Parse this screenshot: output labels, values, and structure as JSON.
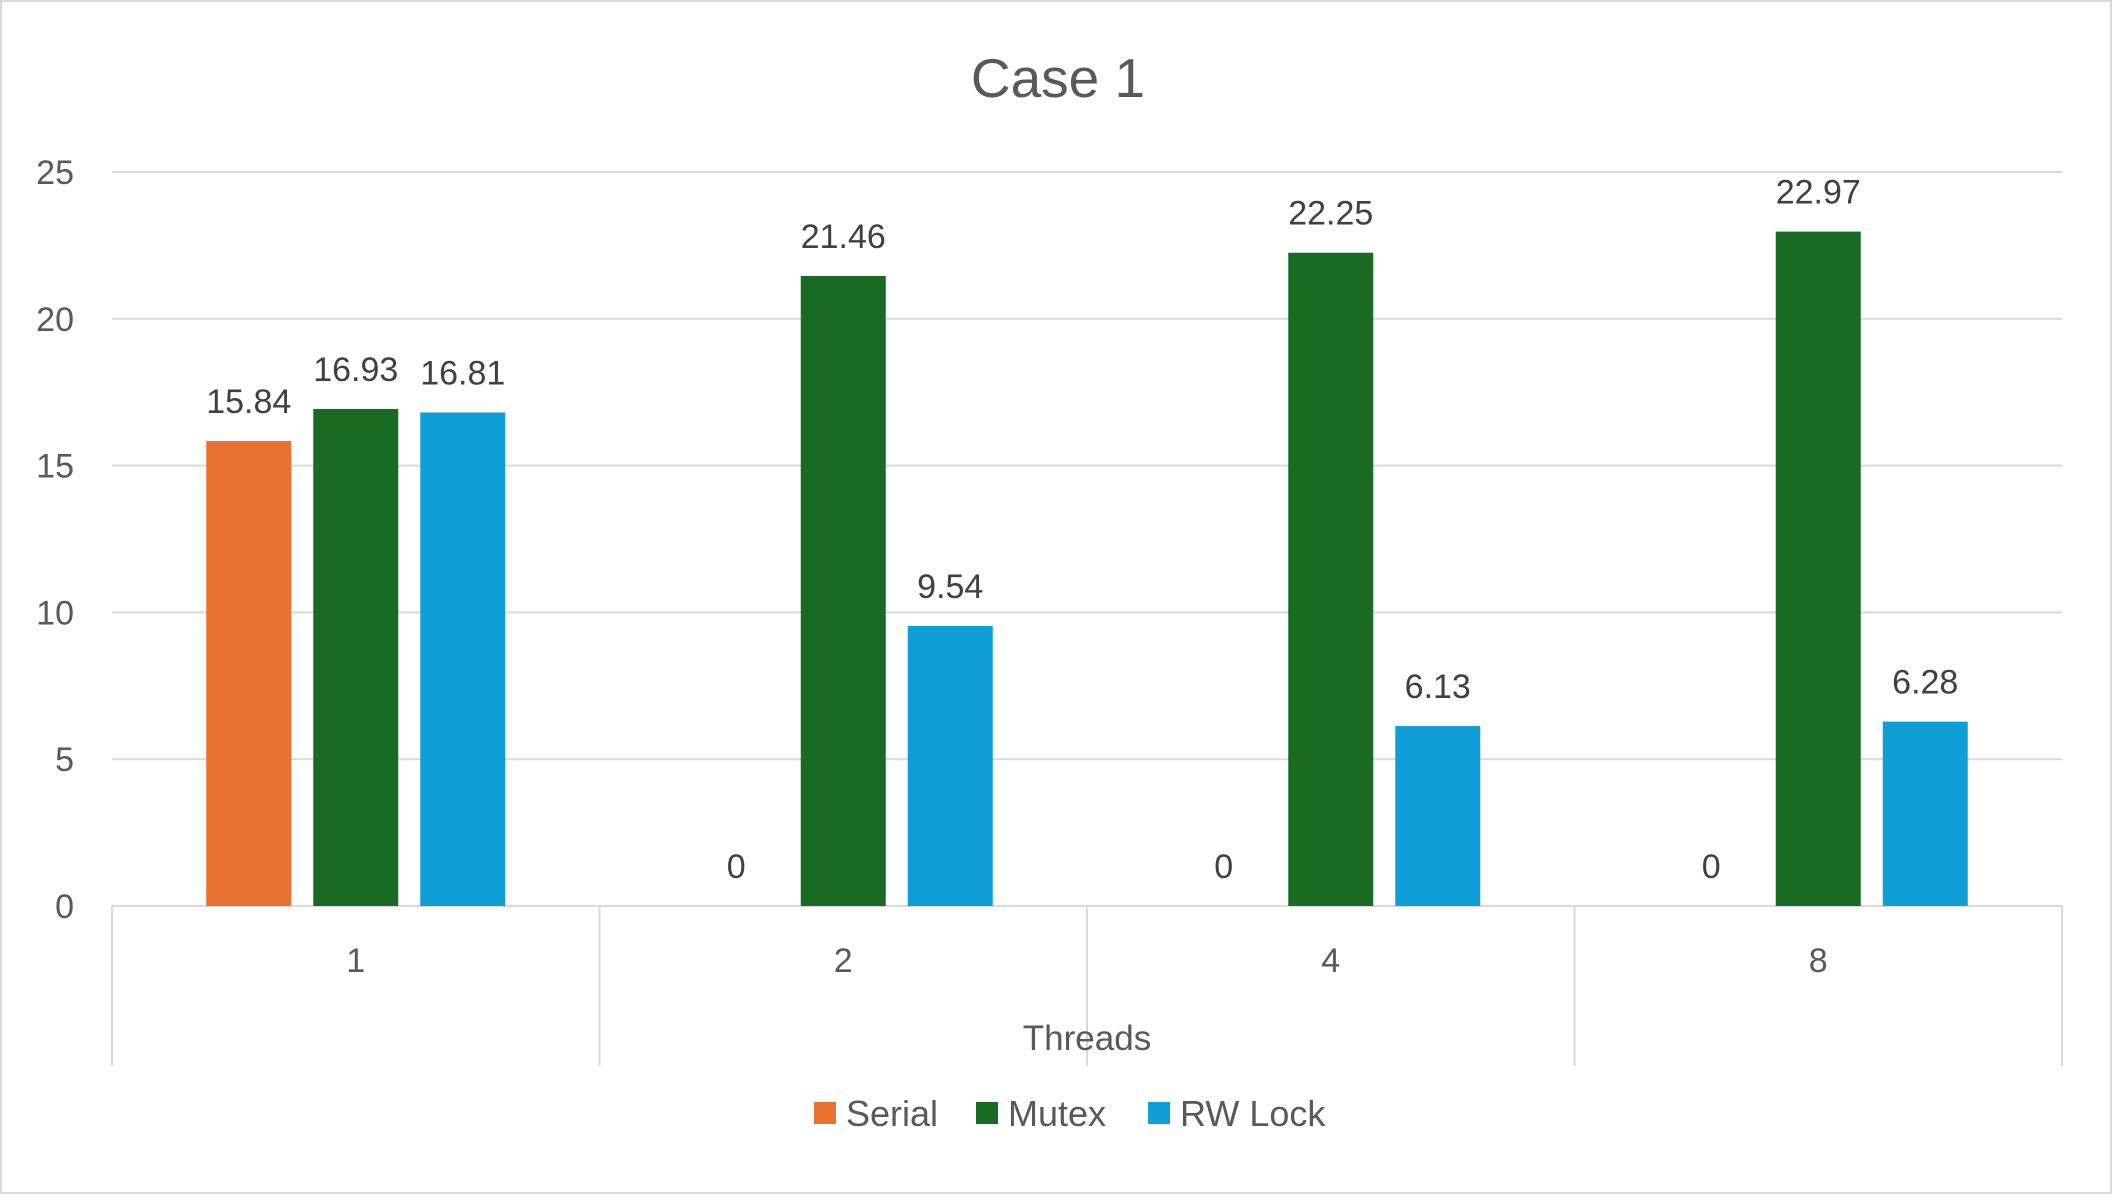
{
  "chart_data": {
    "type": "bar",
    "title": "Case 1",
    "xlabel": "Threads",
    "ylabel": "",
    "categories": [
      "1",
      "2",
      "4",
      "8"
    ],
    "series": [
      {
        "name": "Serial",
        "color": "#e97132",
        "values": [
          15.84,
          0,
          0,
          0
        ],
        "labels": [
          "15.84",
          "0",
          "0",
          "0"
        ]
      },
      {
        "name": "Mutex",
        "color": "#196b24",
        "values": [
          16.93,
          21.46,
          22.25,
          22.97
        ],
        "labels": [
          "16.93",
          "21.46",
          "22.25",
          "22.97"
        ]
      },
      {
        "name": "RW Lock",
        "color": "#0f9ed5",
        "values": [
          16.81,
          9.54,
          6.13,
          6.28
        ],
        "labels": [
          "16.81",
          "9.54",
          "6.13",
          "6.28"
        ]
      }
    ],
    "ylim": [
      0,
      25
    ],
    "yticks": [
      "0",
      "5",
      "10",
      "15",
      "20",
      "25"
    ],
    "grid": true,
    "legend_position": "bottom"
  }
}
